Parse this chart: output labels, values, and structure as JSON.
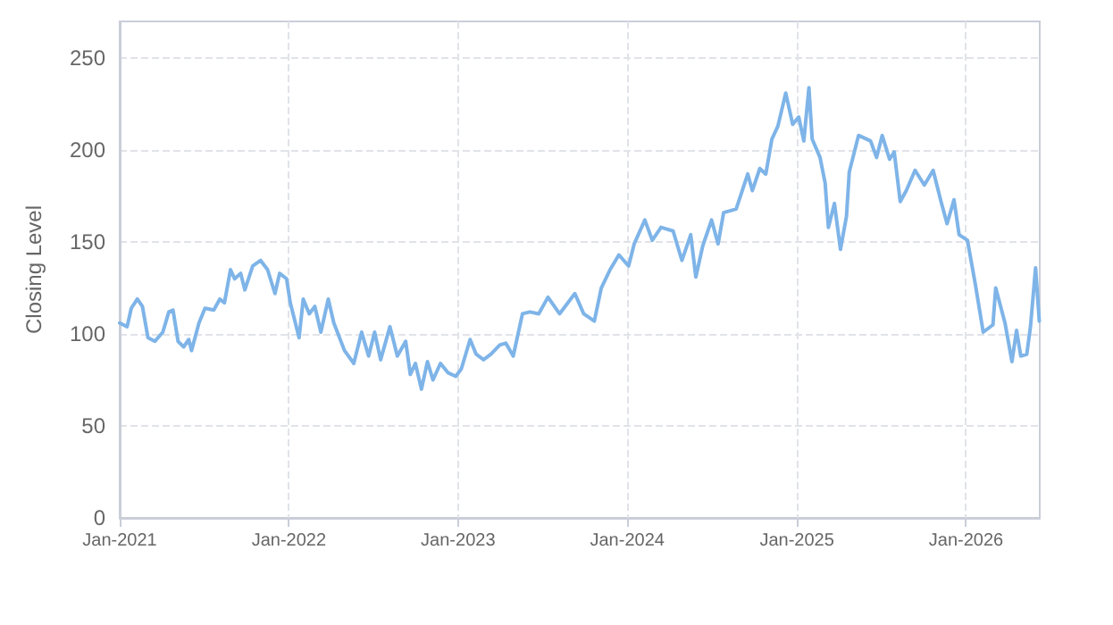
{
  "chart_data": {
    "type": "line",
    "ylabel": "Closing Level",
    "color": "#7eb4e8",
    "grid": true,
    "marker": "none",
    "line_style": "solid",
    "x": [
      "2021-01-01",
      "2021-01-17",
      "2021-01-26",
      "2021-02-08",
      "2021-02-19",
      "2021-03-03",
      "2021-03-18",
      "2021-04-04",
      "2021-04-17",
      "2021-04-26",
      "2021-05-07",
      "2021-05-19",
      "2021-05-30",
      "2021-06-05",
      "2021-06-21",
      "2021-07-04",
      "2021-07-23",
      "2021-08-05",
      "2021-08-15",
      "2021-08-28",
      "2021-09-06",
      "2021-09-19",
      "2021-09-28",
      "2021-10-15",
      "2021-11-01",
      "2021-11-16",
      "2021-12-02",
      "2021-12-12",
      "2021-12-27",
      "2022-01-04",
      "2022-01-23",
      "2022-02-01",
      "2022-02-14",
      "2022-02-26",
      "2022-03-11",
      "2022-03-27",
      "2022-04-08",
      "2022-05-01",
      "2022-05-21",
      "2022-06-07",
      "2022-06-22",
      "2022-07-05",
      "2022-07-18",
      "2022-08-07",
      "2022-08-23",
      "2022-09-10",
      "2022-09-20",
      "2022-10-01",
      "2022-10-14",
      "2022-10-27",
      "2022-11-08",
      "2022-11-24",
      "2022-12-10",
      "2022-12-27",
      "2023-01-08",
      "2023-01-27",
      "2023-02-09",
      "2023-02-25",
      "2023-03-13",
      "2023-04-01",
      "2023-04-14",
      "2023-04-30",
      "2023-05-20",
      "2023-06-05",
      "2023-06-24",
      "2023-07-14",
      "2023-08-08",
      "2023-09-10",
      "2023-09-29",
      "2023-10-22",
      "2023-11-06",
      "2023-11-25",
      "2023-12-14",
      "2024-01-04",
      "2024-01-16",
      "2024-02-08",
      "2024-02-24",
      "2024-03-14",
      "2024-04-09",
      "2024-04-28",
      "2024-05-17",
      "2024-05-28",
      "2024-06-12",
      "2024-07-01",
      "2024-07-15",
      "2024-07-27",
      "2024-08-23",
      "2024-09-17",
      "2024-09-27",
      "2024-10-13",
      "2024-10-26",
      "2024-11-08",
      "2024-11-21",
      "2024-12-08",
      "2024-12-23",
      "2025-01-05",
      "2025-01-16",
      "2025-01-27",
      "2025-02-03",
      "2025-02-20",
      "2025-03-03",
      "2025-03-10",
      "2025-03-23",
      "2025-04-05",
      "2025-04-18",
      "2025-04-24",
      "2025-05-14",
      "2025-06-09",
      "2025-06-22",
      "2025-07-04",
      "2025-07-20",
      "2025-07-30",
      "2025-08-12",
      "2025-08-25",
      "2025-09-13",
      "2025-10-03",
      "2025-10-22",
      "2025-11-08",
      "2025-11-21",
      "2025-12-06",
      "2025-12-17",
      "2026-01-04",
      "2026-01-21",
      "2026-02-07",
      "2026-02-28",
      "2026-03-06",
      "2026-03-26",
      "2026-04-10",
      "2026-04-20",
      "2026-04-29",
      "2026-05-12",
      "2026-05-20",
      "2026-05-31",
      "2026-06-08"
    ],
    "values": [
      106,
      104,
      114,
      119,
      115,
      98,
      96,
      101,
      112,
      113,
      96,
      93,
      97,
      91,
      106,
      114,
      113,
      119,
      117,
      135,
      130,
      133,
      124,
      137,
      140,
      135,
      122,
      133,
      130,
      117,
      98,
      119,
      111,
      115,
      101,
      119,
      106,
      91,
      84,
      101,
      88,
      101,
      86,
      104,
      88,
      96,
      78,
      84,
      70,
      85,
      75,
      84,
      79,
      77,
      81,
      97,
      89,
      86,
      89,
      94,
      95,
      88,
      111,
      112,
      111,
      120,
      111,
      122,
      111,
      107,
      125,
      135,
      143,
      137,
      149,
      162,
      151,
      158,
      156,
      140,
      154,
      131,
      148,
      162,
      149,
      166,
      168,
      187,
      178,
      190,
      187,
      206,
      213,
      231,
      214,
      218,
      205,
      234,
      206,
      196,
      182,
      158,
      171,
      146,
      164,
      188,
      208,
      205,
      196,
      208,
      195,
      199,
      172,
      178,
      189,
      181,
      189,
      172,
      160,
      173,
      154,
      151,
      127,
      101,
      105,
      125,
      106,
      85,
      102,
      88,
      89,
      104,
      136,
      107
    ],
    "xlim": [
      "2021-01-01",
      "2026-06-09"
    ],
    "xticks": [
      {
        "value": "2021-01-01",
        "label": "Jan-2021"
      },
      {
        "value": "2022-01-01",
        "label": "Jan-2022"
      },
      {
        "value": "2023-01-01",
        "label": "Jan-2023"
      },
      {
        "value": "2024-01-01",
        "label": "Jan-2024"
      },
      {
        "value": "2025-01-01",
        "label": "Jan-2025"
      },
      {
        "value": "2026-01-01",
        "label": "Jan-2026"
      }
    ],
    "ylim": [
      0,
      270
    ],
    "yticks": [
      0,
      50,
      100,
      150,
      200,
      250
    ]
  }
}
